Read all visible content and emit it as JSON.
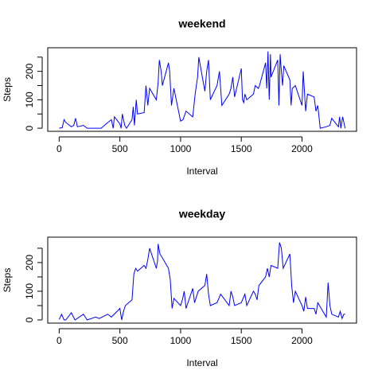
{
  "chart_data": [
    {
      "type": "line",
      "title": "weekend",
      "xlabel": "Interval",
      "ylabel": "Steps",
      "xlim": [
        -94.2,
        2449.2
      ],
      "ylim": [
        -10.9,
        283
      ],
      "xticks": [
        0,
        500,
        1000,
        1500,
        2000
      ],
      "yticks": [
        0,
        100,
        200
      ],
      "yminor_ticks": [
        50,
        150,
        250
      ],
      "x": [
        0,
        25,
        40,
        55,
        100,
        120,
        135,
        150,
        200,
        230,
        300,
        345,
        400,
        430,
        445,
        455,
        500,
        510,
        520,
        540,
        555,
        600,
        610,
        620,
        635,
        645,
        700,
        715,
        730,
        745,
        800,
        815,
        825,
        840,
        850,
        900,
        910,
        925,
        945,
        1000,
        1020,
        1045,
        1100,
        1120,
        1140,
        1150,
        1200,
        1215,
        1230,
        1245,
        1300,
        1320,
        1340,
        1400,
        1415,
        1430,
        1445,
        1500,
        1510,
        1520,
        1530,
        1545,
        1600,
        1615,
        1640,
        1650,
        1700,
        1710,
        1720,
        1730,
        1740,
        1745,
        1800,
        1810,
        1820,
        1830,
        1840,
        1850,
        1900,
        1910,
        1920,
        1945,
        2000,
        2010,
        2030,
        2045,
        2100,
        2115,
        2130,
        2140,
        2150,
        2200,
        2230,
        2245,
        2300,
        2310,
        2320,
        2335,
        2355
      ],
      "series": [
        {
          "name": "weekend",
          "color": "#0000ff",
          "values": [
            0,
            2,
            30,
            20,
            5,
            10,
            35,
            5,
            10,
            0,
            0,
            0,
            20,
            30,
            0,
            40,
            15,
            0,
            50,
            10,
            0,
            30,
            75,
            10,
            100,
            50,
            55,
            150,
            80,
            140,
            100,
            160,
            240,
            200,
            150,
            230,
            200,
            80,
            140,
            25,
            30,
            60,
            40,
            120,
            180,
            250,
            130,
            200,
            240,
            100,
            150,
            200,
            80,
            120,
            140,
            180,
            110,
            210,
            100,
            90,
            120,
            100,
            120,
            150,
            140,
            150,
            230,
            140,
            270,
            100,
            260,
            180,
            240,
            80,
            260,
            200,
            150,
            220,
            170,
            80,
            140,
            150,
            80,
            200,
            60,
            120,
            110,
            60,
            80,
            40,
            0,
            5,
            10,
            35,
            5,
            40,
            0,
            40,
            0
          ]
        }
      ]
    },
    {
      "type": "line",
      "title": "weekday",
      "xlabel": "Interval",
      "ylabel": "Steps",
      "xlim": [
        -94.2,
        2449.2
      ],
      "ylim": [
        -11.1,
        288.6
      ],
      "xticks": [
        0,
        500,
        1000,
        1500,
        2000
      ],
      "yticks": [
        0,
        100,
        200
      ],
      "yminor_ticks": [
        50,
        150,
        250
      ],
      "x": [
        0,
        20,
        40,
        55,
        100,
        130,
        200,
        230,
        300,
        330,
        400,
        430,
        500,
        515,
        530,
        545,
        600,
        615,
        630,
        645,
        700,
        715,
        730,
        745,
        800,
        810,
        815,
        830,
        845,
        900,
        915,
        930,
        945,
        1000,
        1015,
        1030,
        1045,
        1100,
        1115,
        1130,
        1145,
        1200,
        1215,
        1230,
        1245,
        1300,
        1330,
        1400,
        1415,
        1430,
        1445,
        1500,
        1530,
        1545,
        1600,
        1615,
        1630,
        1645,
        1700,
        1715,
        1730,
        1745,
        1800,
        1815,
        1830,
        1845,
        1900,
        1915,
        1930,
        1945,
        2000,
        2015,
        2030,
        2045,
        2100,
        2115,
        2130,
        2200,
        2215,
        2230,
        2245,
        2300,
        2315,
        2330,
        2345,
        2355
      ],
      "series": [
        {
          "name": "weekday",
          "color": "#0000ff",
          "values": [
            2,
            20,
            0,
            0,
            25,
            0,
            20,
            0,
            10,
            5,
            20,
            10,
            40,
            0,
            30,
            50,
            70,
            160,
            180,
            170,
            190,
            180,
            210,
            250,
            180,
            205,
            265,
            230,
            220,
            180,
            140,
            40,
            75,
            50,
            70,
            100,
            40,
            110,
            60,
            80,
            100,
            120,
            160,
            90,
            50,
            60,
            90,
            50,
            100,
            80,
            50,
            60,
            90,
            50,
            100,
            90,
            70,
            120,
            150,
            180,
            150,
            190,
            180,
            270,
            250,
            180,
            230,
            120,
            60,
            100,
            50,
            30,
            80,
            40,
            40,
            20,
            60,
            10,
            130,
            50,
            20,
            10,
            30,
            5,
            20,
            20
          ]
        }
      ]
    }
  ]
}
